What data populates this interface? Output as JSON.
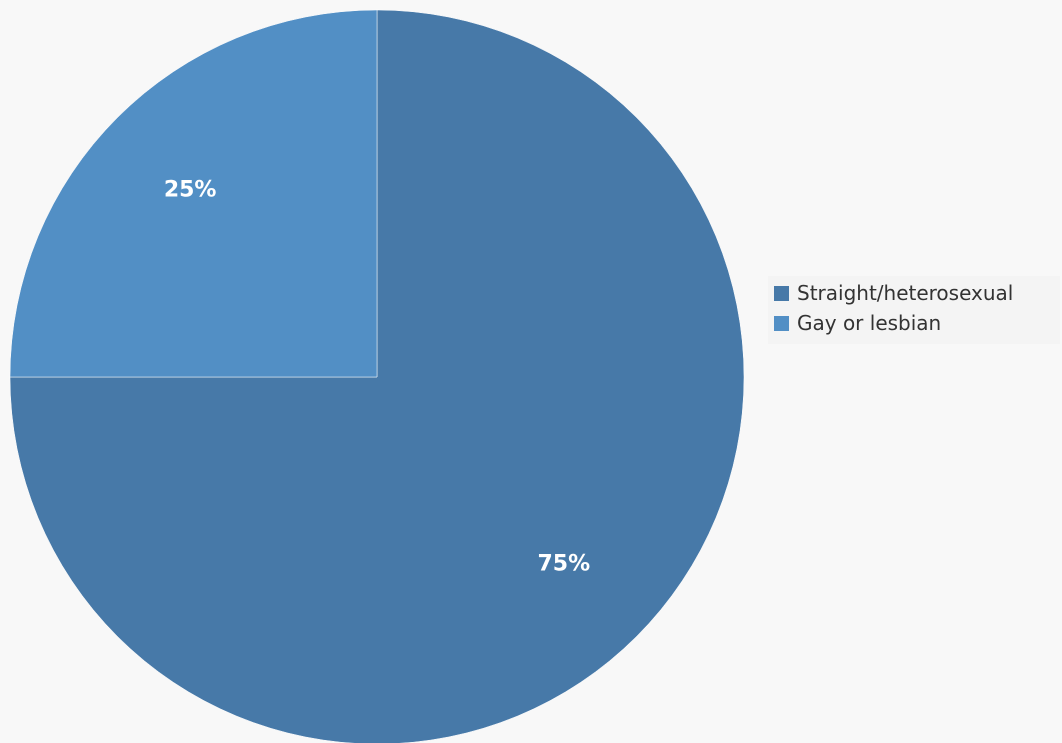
{
  "chart_data": {
    "type": "pie",
    "title": "",
    "slices": [
      {
        "label": "Straight/heterosexual",
        "value": 75,
        "display": "75%",
        "color": "#4779a8"
      },
      {
        "label": "Gay or lesbian",
        "value": 25,
        "display": "25%",
        "color": "#528fc5"
      }
    ],
    "start_angle_deg": 0,
    "direction": "clockwise",
    "legend": {
      "placement": "right",
      "items": [
        {
          "label": "Straight/heterosexual",
          "color": "#4779a8"
        },
        {
          "label": "Gay or lesbian",
          "color": "#528fc5"
        }
      ]
    },
    "background": "#f8f8f8",
    "label_color": "#ffffff"
  }
}
